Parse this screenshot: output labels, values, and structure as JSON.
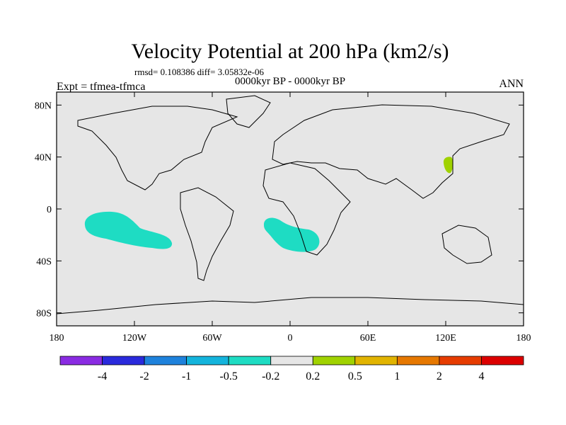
{
  "title": "Velocity Potential at 200 hPa (km2/s)",
  "stats": "rmsd= 0.108386  diff= 3.05832e-06",
  "subtitle": "0000kyr BP - 0000kyr BP",
  "left_label": "Expt = tfmea-tfmca",
  "right_label": "ANN",
  "lat_ticks": [
    "80N",
    "40N",
    "0",
    "40S",
    "80S"
  ],
  "lat_values": [
    80,
    40,
    0,
    -40,
    -80
  ],
  "lon_ticks": [
    "180",
    "120W",
    "60W",
    "0",
    "60E",
    "120E",
    "180"
  ],
  "lon_values": [
    -180,
    -120,
    -60,
    0,
    60,
    120,
    180
  ],
  "colorbar": {
    "labels": [
      "-4",
      "-2",
      "-1",
      "-0.5",
      "-0.2",
      "0.2",
      "0.5",
      "1",
      "2",
      "4"
    ],
    "colors": [
      "#8a2be2",
      "#2a2adc",
      "#1e82dc",
      "#14b4dc",
      "#1edcc3",
      "#e6e6e6",
      "#a0d200",
      "#e1b400",
      "#e67800",
      "#e63c00",
      "#dc0000"
    ]
  },
  "map": {
    "ocean_color": "#e6e6e6",
    "regions": [
      {
        "name": "central-pacific-negative",
        "level": "-0.5 to -0.2",
        "color": "#1edcc3"
      },
      {
        "name": "south-atlantic-negative",
        "level": "-0.5 to -0.2",
        "color": "#1edcc3"
      },
      {
        "name": "east-asia-positive",
        "level": "0.2 to 0.5",
        "color": "#a0d200"
      }
    ]
  }
}
